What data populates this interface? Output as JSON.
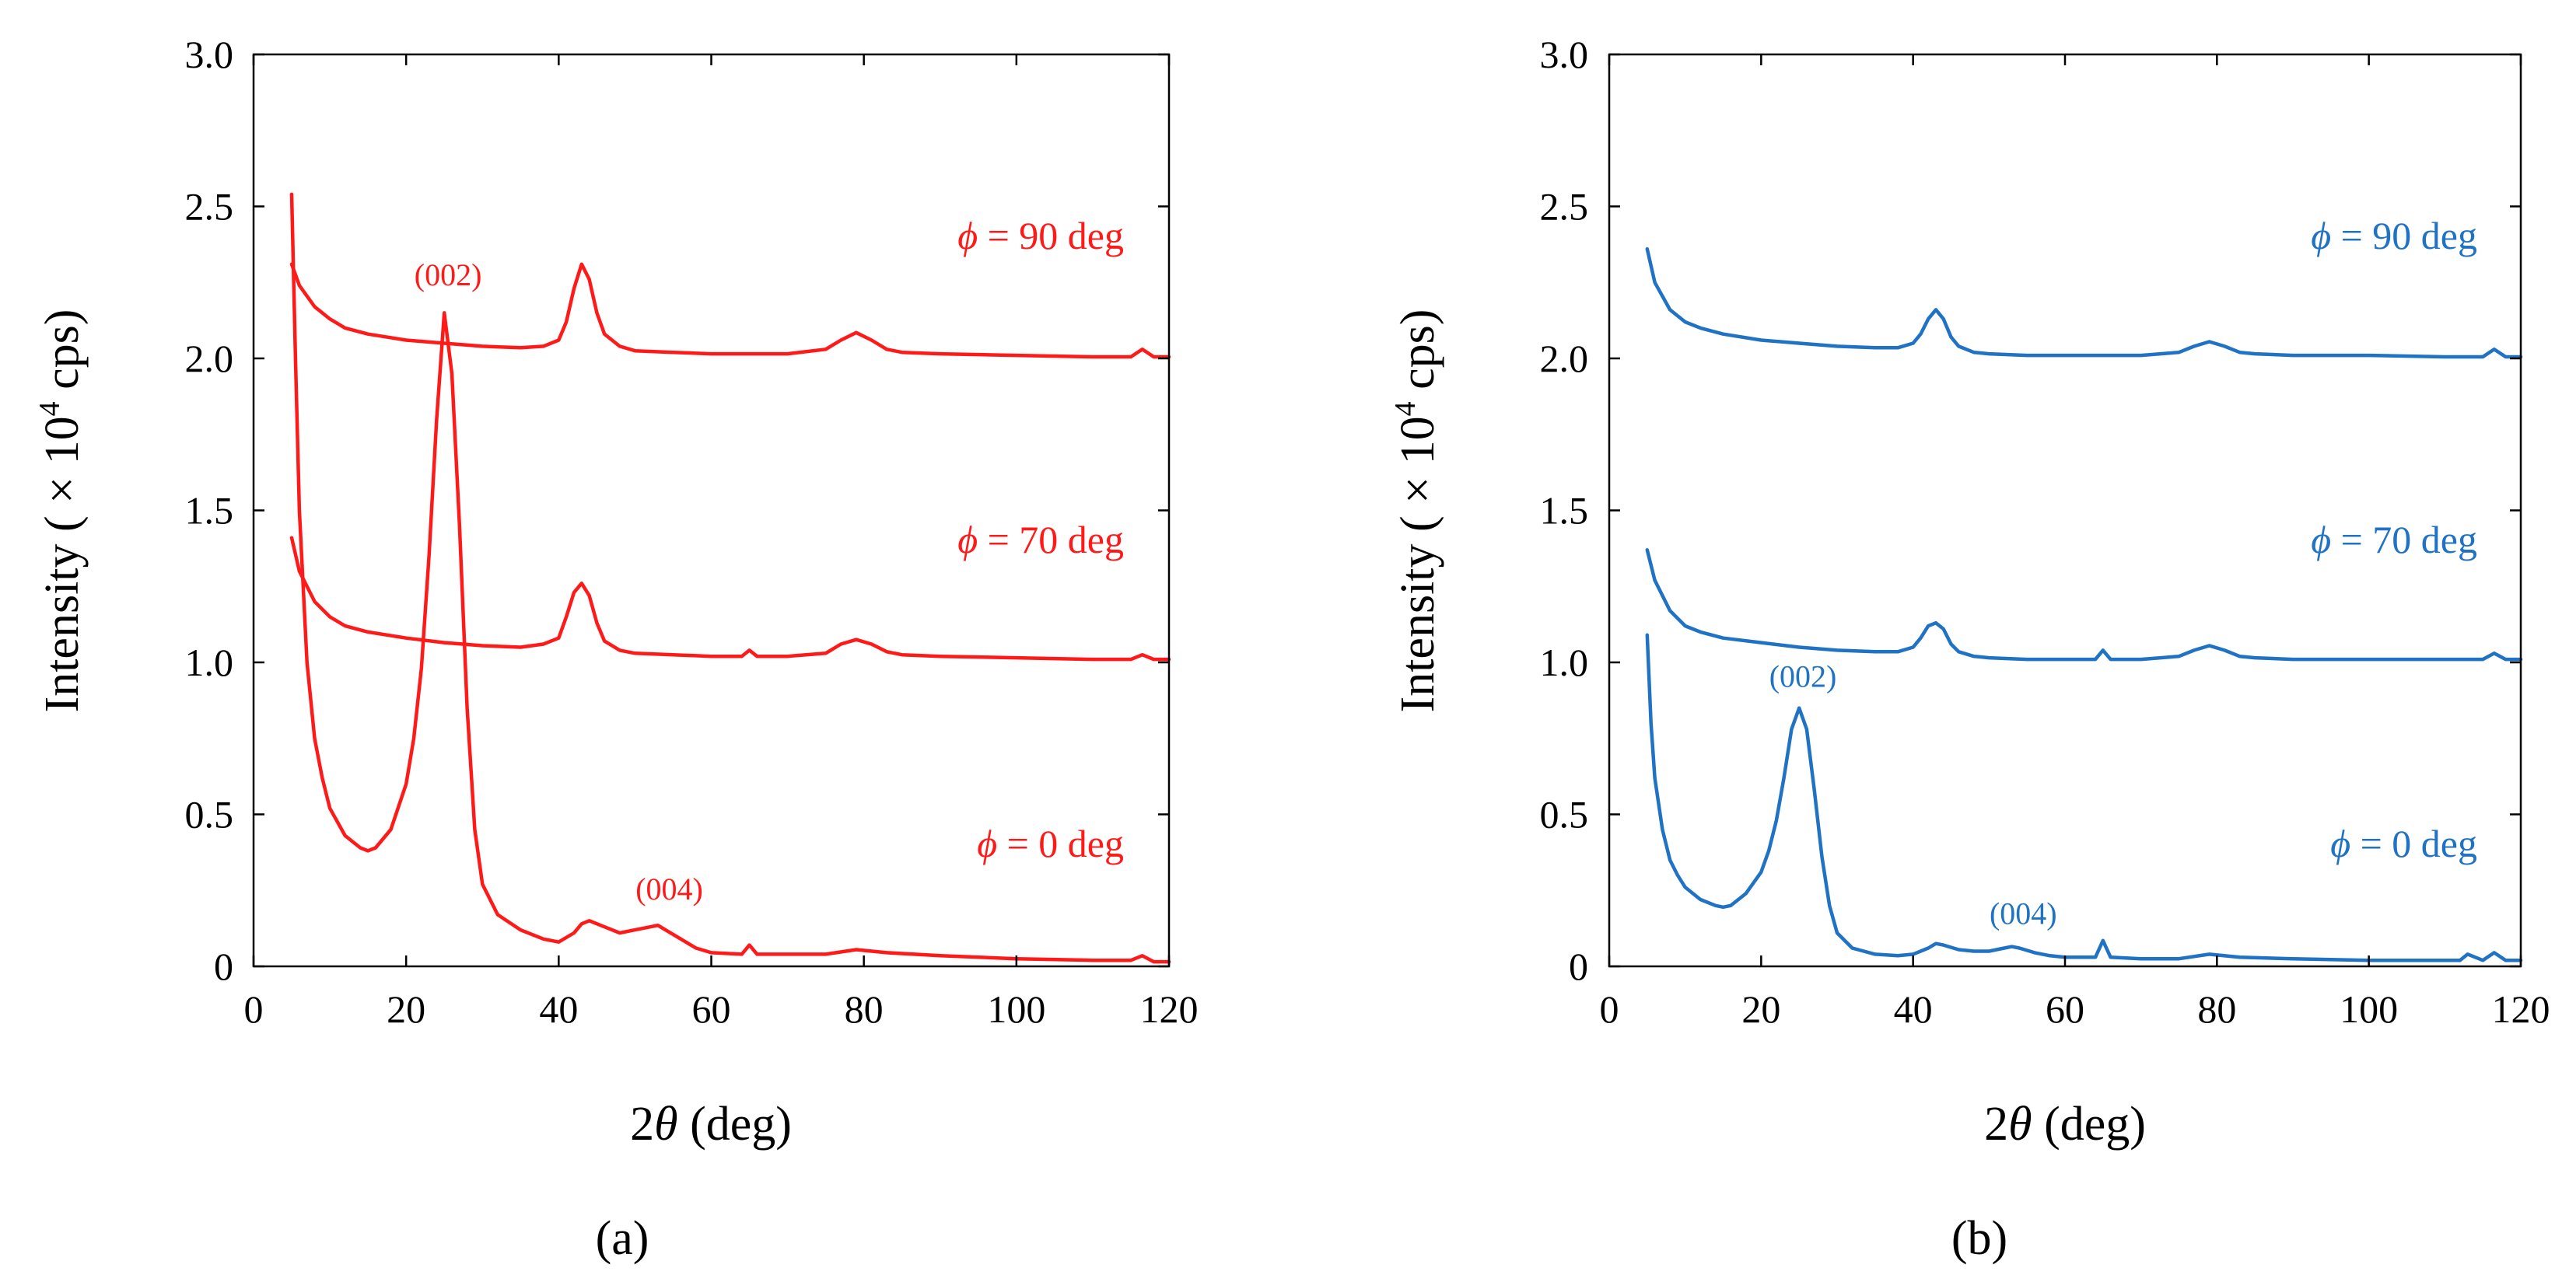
{
  "chart_data": [
    {
      "type": "line",
      "panel_label": "a",
      "panel_label_text": "(a)",
      "color": "#ff1a1a",
      "xlabel": "2θ (deg)",
      "xlabel_pre": "2",
      "xlabel_sym": "θ",
      "xlabel_post": " (deg)",
      "ylabel": "Intensity ( × 10⁴ cps)",
      "ylabel_pre": "Intensity ( × 10",
      "ylabel_exp": "4",
      "ylabel_post": " cps)",
      "xlim": [
        0,
        120
      ],
      "ylim": [
        0,
        3.0
      ],
      "xticks": [
        0,
        20,
        40,
        60,
        80,
        100,
        120
      ],
      "yticks": [
        0,
        0.5,
        1.0,
        1.5,
        2.0,
        2.5,
        3.0
      ],
      "ytick_labels": [
        "0",
        "0.5",
        "1.0",
        "1.5",
        "2.0",
        "2.5",
        "3.0"
      ],
      "series": [
        {
          "name": "ϕ = 90 deg",
          "sym": "ϕ",
          "rest": " = 90 deg",
          "label_y": 2.36,
          "x": [
            5,
            6,
            8,
            10,
            12,
            15,
            20,
            25,
            30,
            35,
            38,
            40,
            41,
            42,
            43,
            44,
            45,
            46,
            48,
            50,
            55,
            60,
            65,
            70,
            75,
            77,
            79,
            81,
            83,
            85,
            90,
            100,
            110,
            115,
            116.5,
            118,
            120
          ],
          "y": [
            2.31,
            2.24,
            2.17,
            2.13,
            2.1,
            2.08,
            2.06,
            2.05,
            2.04,
            2.035,
            2.04,
            2.06,
            2.12,
            2.23,
            2.31,
            2.26,
            2.15,
            2.08,
            2.04,
            2.025,
            2.02,
            2.015,
            2.015,
            2.015,
            2.03,
            2.06,
            2.085,
            2.06,
            2.03,
            2.02,
            2.015,
            2.01,
            2.005,
            2.005,
            2.03,
            2.005,
            2.005
          ]
        },
        {
          "name": "ϕ = 70 deg",
          "sym": "ϕ",
          "rest": " = 70 deg",
          "label_y": 1.36,
          "x": [
            5,
            6,
            8,
            10,
            12,
            15,
            20,
            25,
            30,
            35,
            38,
            40,
            41,
            42,
            43,
            44,
            45,
            46,
            48,
            50,
            55,
            60,
            64,
            65,
            66,
            70,
            75,
            77,
            79,
            81,
            83,
            85,
            90,
            100,
            110,
            115,
            116.5,
            118,
            120
          ],
          "y": [
            1.41,
            1.3,
            1.2,
            1.15,
            1.12,
            1.1,
            1.08,
            1.065,
            1.055,
            1.05,
            1.06,
            1.08,
            1.15,
            1.23,
            1.26,
            1.22,
            1.13,
            1.07,
            1.04,
            1.03,
            1.025,
            1.02,
            1.02,
            1.04,
            1.02,
            1.02,
            1.03,
            1.06,
            1.075,
            1.06,
            1.035,
            1.025,
            1.02,
            1.015,
            1.01,
            1.01,
            1.025,
            1.01,
            1.01
          ]
        },
        {
          "name": "ϕ = 0 deg",
          "sym": "ϕ",
          "rest": " = 0 deg",
          "label_y": 0.36,
          "x": [
            5,
            5.5,
            6,
            7,
            8,
            9,
            10,
            12,
            14,
            15,
            16,
            18,
            20,
            21,
            22,
            23,
            24,
            25,
            26,
            27,
            28,
            29,
            30,
            32,
            35,
            38,
            40,
            42,
            43,
            44,
            46,
            48,
            50,
            52,
            53,
            54,
            56,
            58,
            60,
            64,
            65,
            66,
            70,
            75,
            79,
            83,
            90,
            100,
            110,
            115,
            116.5,
            118,
            120
          ],
          "y": [
            2.54,
            2.0,
            1.5,
            1.0,
            0.75,
            0.62,
            0.52,
            0.43,
            0.39,
            0.38,
            0.39,
            0.45,
            0.6,
            0.75,
            0.98,
            1.35,
            1.8,
            2.15,
            1.95,
            1.45,
            0.85,
            0.45,
            0.27,
            0.17,
            0.12,
            0.09,
            0.08,
            0.11,
            0.14,
            0.15,
            0.13,
            0.11,
            0.12,
            0.13,
            0.135,
            0.12,
            0.09,
            0.06,
            0.045,
            0.04,
            0.07,
            0.04,
            0.04,
            0.04,
            0.055,
            0.045,
            0.035,
            0.025,
            0.02,
            0.02,
            0.035,
            0.015,
            0.015
          ]
        }
      ],
      "annotations": [
        {
          "text": "(002)",
          "x": 25.5,
          "y": 2.24
        },
        {
          "text": "(004)",
          "x": 54.5,
          "y": 0.22
        }
      ]
    },
    {
      "type": "line",
      "panel_label": "b",
      "panel_label_text": "(b)",
      "color": "#1f72c4",
      "xlabel": "2θ (deg)",
      "xlabel_pre": "2",
      "xlabel_sym": "θ",
      "xlabel_post": " (deg)",
      "ylabel": "Intensity ( × 10⁴ cps)",
      "ylabel_pre": "Intensity ( × 10",
      "ylabel_exp": "4",
      "ylabel_post": " cps)",
      "xlim": [
        0,
        120
      ],
      "ylim": [
        0,
        3.0
      ],
      "xticks": [
        0,
        20,
        40,
        60,
        80,
        100,
        120
      ],
      "yticks": [
        0,
        0.5,
        1.0,
        1.5,
        2.0,
        2.5,
        3.0
      ],
      "ytick_labels": [
        "0",
        "0.5",
        "1.0",
        "1.5",
        "2.0",
        "2.5",
        "3.0"
      ],
      "series": [
        {
          "name": "ϕ = 90 deg",
          "sym": "ϕ",
          "rest": " = 90 deg",
          "label_y": 2.36,
          "x": [
            5,
            6,
            8,
            10,
            12,
            15,
            20,
            25,
            30,
            35,
            38,
            40,
            41,
            42,
            43,
            44,
            45,
            46,
            48,
            50,
            55,
            60,
            65,
            70,
            75,
            77,
            79,
            81,
            83,
            85,
            90,
            100,
            110,
            115,
            116.5,
            118,
            120
          ],
          "y": [
            2.36,
            2.25,
            2.16,
            2.12,
            2.1,
            2.08,
            2.06,
            2.05,
            2.04,
            2.035,
            2.035,
            2.05,
            2.08,
            2.13,
            2.16,
            2.13,
            2.07,
            2.04,
            2.02,
            2.015,
            2.01,
            2.01,
            2.01,
            2.01,
            2.02,
            2.04,
            2.055,
            2.04,
            2.02,
            2.015,
            2.01,
            2.01,
            2.005,
            2.005,
            2.03,
            2.005,
            2.005
          ]
        },
        {
          "name": "ϕ = 70 deg",
          "sym": "ϕ",
          "rest": " = 70 deg",
          "label_y": 1.36,
          "x": [
            5,
            6,
            8,
            10,
            12,
            15,
            20,
            25,
            30,
            35,
            38,
            40,
            41,
            42,
            43,
            44,
            45,
            46,
            48,
            50,
            55,
            60,
            64,
            65,
            66,
            70,
            75,
            77,
            79,
            81,
            83,
            85,
            90,
            100,
            110,
            115,
            116.5,
            118,
            120
          ],
          "y": [
            1.37,
            1.27,
            1.17,
            1.12,
            1.1,
            1.08,
            1.065,
            1.05,
            1.04,
            1.035,
            1.035,
            1.05,
            1.08,
            1.12,
            1.13,
            1.11,
            1.06,
            1.035,
            1.02,
            1.015,
            1.01,
            1.01,
            1.01,
            1.04,
            1.01,
            1.01,
            1.02,
            1.04,
            1.055,
            1.04,
            1.02,
            1.015,
            1.01,
            1.01,
            1.01,
            1.01,
            1.03,
            1.01,
            1.01
          ]
        },
        {
          "name": "ϕ = 0 deg",
          "sym": "ϕ",
          "rest": " = 0 deg",
          "label_y": 0.36,
          "x": [
            5,
            5.5,
            6,
            7,
            8,
            9,
            10,
            12,
            14,
            15,
            16,
            18,
            20,
            21,
            22,
            23,
            24,
            25,
            26,
            27,
            28,
            29,
            30,
            32,
            35,
            38,
            40,
            42,
            43,
            44,
            46,
            48,
            50,
            52,
            53,
            54,
            56,
            58,
            60,
            64,
            65,
            66,
            70,
            75,
            79,
            83,
            90,
            100,
            110,
            112,
            113,
            115,
            116.5,
            118,
            120
          ],
          "y": [
            1.09,
            0.8,
            0.62,
            0.45,
            0.35,
            0.3,
            0.26,
            0.22,
            0.2,
            0.195,
            0.2,
            0.24,
            0.31,
            0.38,
            0.48,
            0.62,
            0.78,
            0.85,
            0.78,
            0.58,
            0.36,
            0.2,
            0.11,
            0.06,
            0.04,
            0.035,
            0.04,
            0.06,
            0.075,
            0.07,
            0.055,
            0.05,
            0.05,
            0.06,
            0.065,
            0.06,
            0.045,
            0.035,
            0.03,
            0.03,
            0.085,
            0.03,
            0.025,
            0.025,
            0.04,
            0.03,
            0.025,
            0.02,
            0.02,
            0.02,
            0.04,
            0.02,
            0.045,
            0.02,
            0.02
          ]
        }
      ],
      "annotations": [
        {
          "text": "(002)",
          "x": 25.5,
          "y": 0.92
        },
        {
          "text": "(004)",
          "x": 54.5,
          "y": 0.14
        }
      ]
    }
  ]
}
